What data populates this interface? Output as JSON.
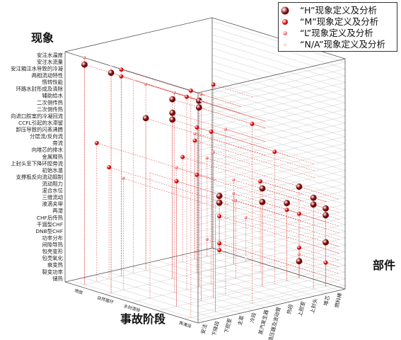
{
  "legend": [
    {
      "label": "“H”现象定义及分析",
      "color": "#7a0000"
    },
    {
      "label": "“M”现象定义及分析",
      "color": "#d40000"
    },
    {
      "label": "“L”现象定义及分析",
      "color": "#f07070"
    },
    {
      "label": "“N/A”现象定义及分析",
      "color": "#f8c8c8"
    }
  ],
  "chart_data": {
    "type": "scatter",
    "ylabel": "现象",
    "xlabel": "事故阶段",
    "zlabel": "部件",
    "phenomena": [
      "安注水温度",
      "安注水流量",
      "安注箱注水导致的冷凝",
      "两相流动特性",
      "惰转性能",
      "环路水封形成及清除",
      "辅助给水",
      "二次侧传热",
      "二次侧传热",
      "向进口腔室的冷凝回流",
      "CCFL引起的水滞留",
      "卸压导致的闪蒸沸腾",
      "分层流/反向流",
      "旁流",
      "向堆芯的排水",
      "金属释热",
      "上封头至下降环腔旁流",
      "初始水温",
      "支撑板反向流动阻制",
      "流动阻力",
      "混合水位",
      "三维流动",
      "液滴夹带",
      "再湿",
      "CHF后传热",
      "干涸型CHF",
      "DNB型CHF",
      "功率分布",
      "间隙导热",
      "包壳变形",
      "包壳氧化",
      "衰变热",
      "裂变功率",
      "储热"
    ],
    "phases": [
      "喷放",
      "自然循环",
      "水封清除",
      "蒸发",
      "再淹没"
    ],
    "components": [
      "燃料棒",
      "堆芯",
      "上封头",
      "上腔室",
      "热段",
      "稳压器及波动管",
      "蒸汽发生器",
      "冷段",
      "主泵",
      "下腔室",
      "下降段",
      "安注"
    ],
    "importance_levels": [
      "H",
      "M",
      "L",
      "N/A"
    ],
    "points": [
      {
        "phen": "二次侧传热",
        "phase": "自然循环",
        "comp": "蒸汽发生器",
        "imp": "H"
      },
      {
        "phen": "二次侧传热",
        "phase": "水封清除",
        "comp": "蒸汽发生器",
        "imp": "H"
      },
      {
        "phen": "向进口腔室的冷凝回流",
        "phase": "自然循环",
        "comp": "蒸汽发生器",
        "imp": "H"
      },
      {
        "phen": "CCFL引起的水滞留",
        "phase": "自然循环",
        "comp": "蒸汽发生器",
        "imp": "H"
      },
      {
        "phen": "卸压导致的闪蒸沸腾",
        "phase": "喷放",
        "comp": "蒸汽发生器",
        "imp": "H"
      },
      {
        "phen": "安注水流量",
        "phase": "喷放",
        "comp": "安注",
        "imp": "H"
      },
      {
        "phen": "安注水流量",
        "phase": "自然循环",
        "comp": "安注",
        "imp": "H"
      },
      {
        "phen": "辅助给水",
        "phase": "水封清除",
        "comp": "蒸汽发生器",
        "imp": "H"
      },
      {
        "phen": "干涸型CHF",
        "phase": "喷放",
        "comp": "燃料棒",
        "imp": "H"
      },
      {
        "phen": "DNB型CHF",
        "phase": "喷放",
        "comp": "燃料棒",
        "imp": "H"
      },
      {
        "phen": "再湿",
        "phase": "再淹没",
        "comp": "燃料棒",
        "imp": "H"
      },
      {
        "phen": "液滴夹带",
        "phase": "再淹没",
        "comp": "燃料棒",
        "imp": "H"
      },
      {
        "phen": "三维流动",
        "phase": "再淹没",
        "comp": "堆芯",
        "imp": "H"
      },
      {
        "phen": "混合水位",
        "phase": "蒸发",
        "comp": "燃料棒",
        "imp": "H"
      },
      {
        "phen": "混合水位",
        "phase": "再淹没",
        "comp": "堆芯",
        "imp": "H"
      },
      {
        "phen": "流动阻力",
        "phase": "蒸发",
        "comp": "上腔室",
        "imp": "H"
      },
      {
        "phen": "三维流动",
        "phase": "蒸发",
        "comp": "上腔室",
        "imp": "H"
      },
      {
        "phen": "液滴夹带",
        "phase": "蒸发",
        "comp": "堆芯",
        "imp": "H"
      },
      {
        "phen": "功率分布",
        "phase": "再淹没",
        "comp": "燃料棒",
        "imp": "H"
      },
      {
        "phen": "衰变热",
        "phase": "蒸发",
        "comp": "燃料棒",
        "imp": "H"
      },
      {
        "phen": "储热",
        "phase": "喷放",
        "comp": "燃料棒",
        "imp": "M"
      },
      {
        "phen": "裂变功率",
        "phase": "喷放",
        "comp": "燃料棒",
        "imp": "M"
      },
      {
        "phen": "包壳氧化",
        "phase": "再淹没",
        "comp": "燃料棒",
        "imp": "M"
      },
      {
        "phen": "包壳变形",
        "phase": "蒸发",
        "comp": "燃料棒",
        "imp": "M"
      },
      {
        "phen": "间隙导热",
        "phase": "喷放",
        "comp": "燃料棒",
        "imp": "M"
      },
      {
        "phen": "CHF后传热",
        "phase": "蒸发",
        "comp": "燃料棒",
        "imp": "M"
      },
      {
        "phen": "再湿",
        "phase": "蒸发",
        "comp": "堆芯",
        "imp": "M"
      },
      {
        "phen": "混合水位",
        "phase": "水封清除",
        "comp": "堆芯",
        "imp": "M"
      },
      {
        "phen": "流动阻力",
        "phase": "自然循环",
        "comp": "热段",
        "imp": "M"
      },
      {
        "phen": "支撑板反向流动阻制",
        "phase": "喷放",
        "comp": "上腔室",
        "imp": "M"
      },
      {
        "phen": "初始水温",
        "phase": "喷放",
        "comp": "下腔室",
        "imp": "M"
      },
      {
        "phen": "上封头至下降环腔旁流",
        "phase": "喷放",
        "comp": "上封头",
        "imp": "M"
      },
      {
        "phen": "金属释热",
        "phase": "蒸发",
        "comp": "下降段",
        "imp": "M"
      },
      {
        "phen": "向堆芯的排水",
        "phase": "蒸发",
        "comp": "上封头",
        "imp": "M"
      },
      {
        "phen": "旁流",
        "phase": "喷放",
        "comp": "下降段",
        "imp": "M"
      },
      {
        "phen": "分层流/反向流",
        "phase": "自然循环",
        "comp": "热段",
        "imp": "M"
      },
      {
        "phen": "卸压导致的闪蒸沸腾",
        "phase": "水封清除",
        "comp": "稳压器及波动管",
        "imp": "M"
      },
      {
        "phen": "两相流动特性",
        "phase": "喷放",
        "comp": "主泵",
        "imp": "M"
      },
      {
        "phen": "惰转性能",
        "phase": "喷放",
        "comp": "主泵",
        "imp": "M"
      },
      {
        "phen": "环路水封形成及清除",
        "phase": "水封清除",
        "comp": "冷段",
        "imp": "M"
      },
      {
        "phen": "安注箱注水导致的冷凝",
        "phase": "蒸发",
        "comp": "冷段",
        "imp": "M"
      },
      {
        "phen": "安注水温度",
        "phase": "再淹没",
        "comp": "安注",
        "imp": "M"
      },
      {
        "phen": "二次侧传热",
        "phase": "再淹没",
        "comp": "蒸汽发生器",
        "imp": "M"
      },
      {
        "phen": "三维流动",
        "phase": "自然循环",
        "comp": "堆芯",
        "imp": "L"
      },
      {
        "phen": "流动阻力",
        "phase": "喷放",
        "comp": "堆芯",
        "imp": "L"
      },
      {
        "phen": "衰变热",
        "phase": "喷放",
        "comp": "堆芯",
        "imp": "L"
      },
      {
        "phen": "金属释热",
        "phase": "喷放",
        "comp": "上封头",
        "imp": "L"
      },
      {
        "phen": "初始水温",
        "phase": "自然循环",
        "comp": "下降段",
        "imp": "L"
      },
      {
        "phen": "旁流",
        "phase": "蒸发",
        "comp": "下降段",
        "imp": "L"
      },
      {
        "phen": "分层流/反向流",
        "phase": "蒸发",
        "comp": "冷段",
        "imp": "L"
      },
      {
        "phen": "惰转性能",
        "phase": "水封清除",
        "comp": "主泵",
        "imp": "L"
      },
      {
        "phen": "辅助给水",
        "phase": "喷放",
        "comp": "蒸汽发生器",
        "imp": "L"
      },
      {
        "phen": "安注水温度",
        "phase": "喷放",
        "comp": "安注",
        "imp": "L"
      },
      {
        "phen": "CHF后传热",
        "phase": "自然循环",
        "comp": "堆芯",
        "imp": "L"
      },
      {
        "phen": "包壳氧化",
        "phase": "蒸发",
        "comp": "燃料棒",
        "imp": "L"
      },
      {
        "phen": "功率分布",
        "phase": "自然循环",
        "comp": "燃料棒",
        "imp": "L"
      },
      {
        "phen": "再湿",
        "phase": "自然循环",
        "comp": "堆芯",
        "imp": "L"
      },
      {
        "phen": "液滴夹带",
        "phase": "水封清除",
        "comp": "上腔室",
        "imp": "L"
      },
      {
        "phen": "向进口腔室的冷凝回流",
        "phase": "蒸发",
        "comp": "蒸汽发生器",
        "imp": "L"
      },
      {
        "phen": "两相流动特性",
        "phase": "蒸发",
        "comp": "主泵",
        "imp": "L"
      },
      {
        "phen": "储热",
        "phase": "自然循环",
        "comp": "燃料棒",
        "imp": "N/A"
      },
      {
        "phen": "间隙导热",
        "phase": "蒸发",
        "comp": "燃料棒",
        "imp": "N/A"
      },
      {
        "phen": "流动阻力",
        "phase": "再淹没",
        "comp": "下腔室",
        "imp": "N/A"
      },
      {
        "phen": "初始水温",
        "phase": "再淹没",
        "comp": "下腔室",
        "imp": "N/A"
      },
      {
        "phen": "金属释热",
        "phase": "水封清除",
        "comp": "下降段",
        "imp": "N/A"
      },
      {
        "phen": "惰转性能",
        "phase": "蒸发",
        "comp": "主泵",
        "imp": "N/A"
      },
      {
        "phen": "安注水温度",
        "phase": "自然循环",
        "comp": "安注",
        "imp": "N/A"
      },
      {
        "phen": "环路水封形成及清除",
        "phase": "喷放",
        "comp": "冷段",
        "imp": "N/A"
      }
    ]
  }
}
